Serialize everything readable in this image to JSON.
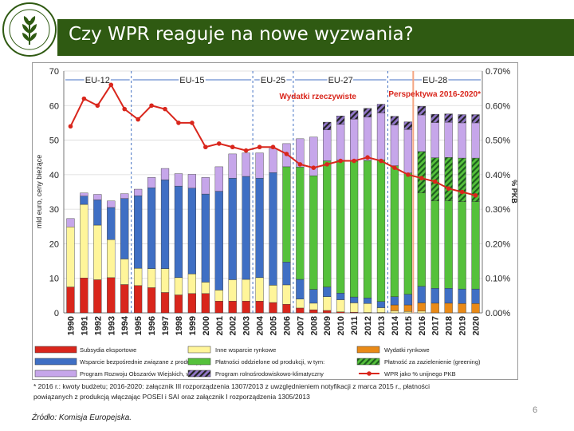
{
  "slide": {
    "title": "Czy WPR reaguje na nowe wyzwania?",
    "footnote_line1": "* 2016 r.: kwoty budżetu; 2016-2020: załącznik III rozporządzenia 1307/2013 z uwzględnieniem notyfikacji z marca 2015 r., płatności",
    "footnote_line2": "powiązanych z produkcją włączając POSEI i SAI oraz załącznik I rozporządzenia 1305/2013",
    "source": "Źródło: Komisja Europejska.",
    "page_number": "6"
  },
  "colors": {
    "header": "#2f5a12",
    "export_subsidies": "#d9261c",
    "coupled": "#3f6fc4",
    "rural": "#c6a6ea",
    "market": "#fff59a",
    "decoupled": "#55c13b",
    "market_mgmt": "#e98a17",
    "greening": "#2d8a2d",
    "env_program": "#9176c9",
    "line": "#d9261c"
  },
  "chart_data": {
    "type": "bar",
    "stacked": true,
    "categories": [
      "1990",
      "1991",
      "1992",
      "1993",
      "1994",
      "1995",
      "1996",
      "1997",
      "1998",
      "1999",
      "2000",
      "2001",
      "2002",
      "2003",
      "2004",
      "2005",
      "2006",
      "2007",
      "2008",
      "2009",
      "2010",
      "2011",
      "2012",
      "2013",
      "2014",
      "2015",
      "2016",
      "2017",
      "2018",
      "2019",
      "2020"
    ],
    "ylabel": "mld euro, ceny bieżące",
    "y2label": "% PKB",
    "ylim": [
      0,
      70
    ],
    "yticks": [
      0,
      10,
      20,
      30,
      40,
      50,
      60,
      70
    ],
    "y2lim": [
      0,
      0.7
    ],
    "y2ticks": [
      "0.00%",
      "0.10%",
      "0.20%",
      "0.30%",
      "0.40%",
      "0.50%",
      "0.60%",
      "0.70%"
    ],
    "series": [
      {
        "name": "Subsydia eksportowe",
        "key": "export_subsidies",
        "values": [
          7.5,
          10.1,
          9.6,
          10.2,
          8.2,
          7.9,
          7.3,
          5.9,
          5.2,
          5.6,
          5.6,
          3.4,
          3.4,
          3.4,
          3.4,
          3.0,
          2.5,
          1.4,
          0.9,
          0.7,
          0.3,
          0.2,
          0.1,
          0.1,
          0,
          0,
          0,
          0,
          0,
          0,
          0
        ]
      },
      {
        "name": "Inne wsparcie rynkowe",
        "key": "market",
        "values": [
          17.4,
          21.3,
          15.8,
          11.0,
          7.4,
          5.0,
          5.5,
          6.9,
          5.0,
          5.7,
          3.3,
          3.2,
          6.2,
          6.3,
          6.8,
          5.0,
          5.6,
          2.6,
          1.9,
          4.0,
          3.5,
          2.7,
          2.6,
          1.4,
          0.6,
          0.4,
          0.5,
          0,
          0,
          0,
          0
        ]
      },
      {
        "name": "Wydatki rynkowe",
        "key": "market_mgmt",
        "values": [
          0,
          0,
          0,
          0,
          0,
          0,
          0,
          0,
          0,
          0,
          0,
          0,
          0,
          0,
          0,
          0,
          0,
          0,
          0,
          0,
          0,
          0,
          0,
          0,
          1.7,
          1.9,
          2.4,
          2.8,
          2.8,
          2.7,
          2.7
        ]
      },
      {
        "name": "Wsparcie bezpośrednie związane z produkcją",
        "key": "coupled",
        "values": [
          0,
          2.4,
          7.3,
          9.3,
          17.5,
          21.0,
          23.4,
          25.7,
          26.5,
          24.8,
          25.5,
          28.6,
          29.4,
          29.8,
          28.8,
          32.6,
          6.6,
          5.7,
          4.0,
          2.8,
          1.9,
          1.7,
          1.6,
          1.8,
          2.4,
          3.1,
          4.8,
          4.3,
          4.3,
          4.2,
          4.2
        ]
      },
      {
        "name": "Płatności oddzielone od produkcji, w tym:",
        "key": "decoupled",
        "values": [
          0,
          0,
          0,
          0,
          0,
          0,
          0,
          0,
          0,
          0,
          0,
          0,
          0,
          0,
          0,
          0,
          27.6,
          32.5,
          32.9,
          36.5,
          38.5,
          39.3,
          39.8,
          41.0,
          37.9,
          35.1,
          27.0,
          25.3,
          25.3,
          25.3,
          25.3
        ]
      },
      {
        "name": "Płatność za zazielenienie (greening)",
        "key": "greening",
        "values": [
          0,
          0,
          0,
          0,
          0,
          0,
          0,
          0,
          0,
          0,
          0,
          0,
          0,
          0,
          0,
          0,
          0,
          0,
          0,
          0,
          0,
          0,
          0,
          0,
          0,
          0,
          12.0,
          12.5,
          12.6,
          12.6,
          12.6
        ]
      },
      {
        "name": "Program Rozwoju Obszarów Wiejskich, w tym:",
        "key": "rural",
        "values": [
          2.4,
          0.9,
          1.6,
          1.9,
          1.4,
          1.9,
          3.0,
          3.3,
          3.6,
          4.0,
          4.8,
          7.1,
          7.0,
          6.8,
          7.3,
          7.0,
          6.7,
          8.2,
          11.2,
          9.0,
          10.4,
          12.2,
          12.6,
          13.6,
          11.8,
          12.6,
          10.6,
          10.2,
          10.2,
          10.2,
          10.2
        ]
      },
      {
        "name": "Program rolnośrodowiskowo-klimatyczny",
        "key": "env_program",
        "values": [
          0,
          0,
          0,
          0,
          0,
          0,
          0,
          0,
          0,
          0,
          0,
          0,
          0,
          0,
          0,
          0,
          0,
          0,
          0,
          2.2,
          2.4,
          2.4,
          2.5,
          2.5,
          2.5,
          2.2,
          2.5,
          2.4,
          2.4,
          2.4,
          2.4
        ]
      },
      {
        "name": "WPR jako % unijnego PKB",
        "key": "line",
        "axis": "y2",
        "values": [
          0.54,
          0.62,
          0.6,
          0.66,
          0.59,
          0.56,
          0.6,
          0.59,
          0.55,
          0.55,
          0.48,
          0.49,
          0.48,
          0.47,
          0.48,
          0.48,
          0.46,
          0.43,
          0.42,
          0.43,
          0.44,
          0.44,
          0.45,
          0.44,
          0.42,
          0.4,
          0.39,
          0.38,
          0.36,
          0.35,
          0.34
        ]
      }
    ],
    "periods": [
      {
        "label": "EU-12",
        "from": 0,
        "to": 4
      },
      {
        "label": "EU-15",
        "from": 5,
        "to": 13
      },
      {
        "label": "EU-25",
        "from": 14,
        "to": 16
      },
      {
        "label": "EU-27",
        "from": 17,
        "to": 23
      },
      {
        "label": "EU-28",
        "from": 24,
        "to": 30
      }
    ],
    "annotations": {
      "real_spending": "Wydatki rzeczywiste",
      "perspective": "Perspektywa 2016-2020*"
    },
    "legend": [
      "Subsydia eksportowe",
      "Inne wsparcie rynkowe",
      "Wydatki rynkowe",
      "Wsparcie bezpośrednie związane z produkcją",
      "Płatności oddzielone od produkcji, w tym:",
      "Płatność za zazielenienie (greening)",
      "Program Rozwoju Obszarów Wiejskich, w tym:",
      "Program rolnośrodowiskowo-klimatyczny",
      "WPR jako % unijnego PKB"
    ]
  }
}
